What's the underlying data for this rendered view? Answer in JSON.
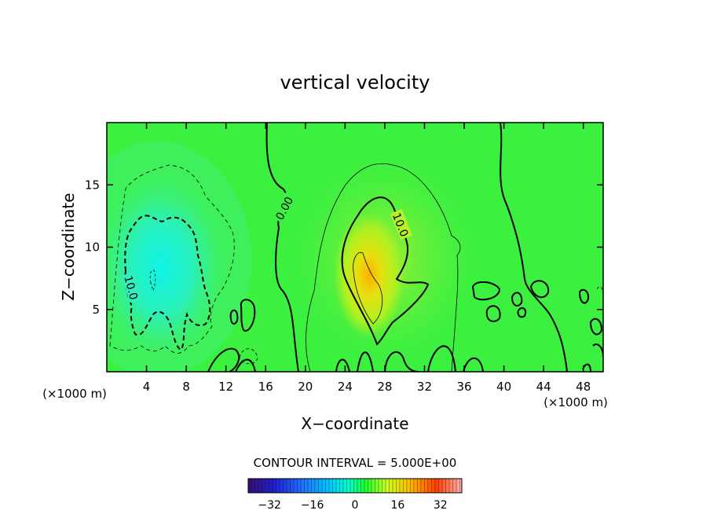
{
  "chart_data": {
    "type": "contour",
    "title": "vertical velocity",
    "xlabel": "X−coordinate",
    "ylabel": "Z−coordinate",
    "x_unit_left": "(×1000 m)",
    "x_unit_right": "(×1000 m)",
    "x_ticks": [
      4,
      8,
      12,
      16,
      20,
      24,
      28,
      32,
      36,
      40,
      44,
      48
    ],
    "y_ticks": [
      5,
      10,
      15
    ],
    "xlim": [
      0,
      50
    ],
    "ylim": [
      0,
      20
    ],
    "contour_interval_text": "CONTOUR INTERVAL = 5.000E+00",
    "contour_labels": [
      {
        "text": "0.00",
        "x": 17.5,
        "y": 12.6,
        "rotate": -62
      },
      {
        "text": "10.0",
        "x": 29.4,
        "y": 11.6,
        "rotate": 68
      },
      {
        "text": "10.0",
        "x": 2.6,
        "y": 6.8,
        "rotate": 75
      }
    ],
    "features": [
      {
        "name": "updraft",
        "center_x": 27,
        "center_z": 7,
        "peak_value": 15
      },
      {
        "name": "downdraft",
        "center_x": 6,
        "center_z": 8,
        "peak_value": -14
      }
    ],
    "colorbar": {
      "ticks": [
        "−32",
        "−16",
        "0",
        "16",
        "32"
      ],
      "range": [
        -40,
        40
      ],
      "colors": [
        "#3b0f70",
        "#1f1fd0",
        "#1f6fff",
        "#00c8ff",
        "#00ffcc",
        "#20ff30",
        "#c8ff20",
        "#ffc000",
        "#ff4000",
        "#ffb0b0"
      ]
    }
  }
}
